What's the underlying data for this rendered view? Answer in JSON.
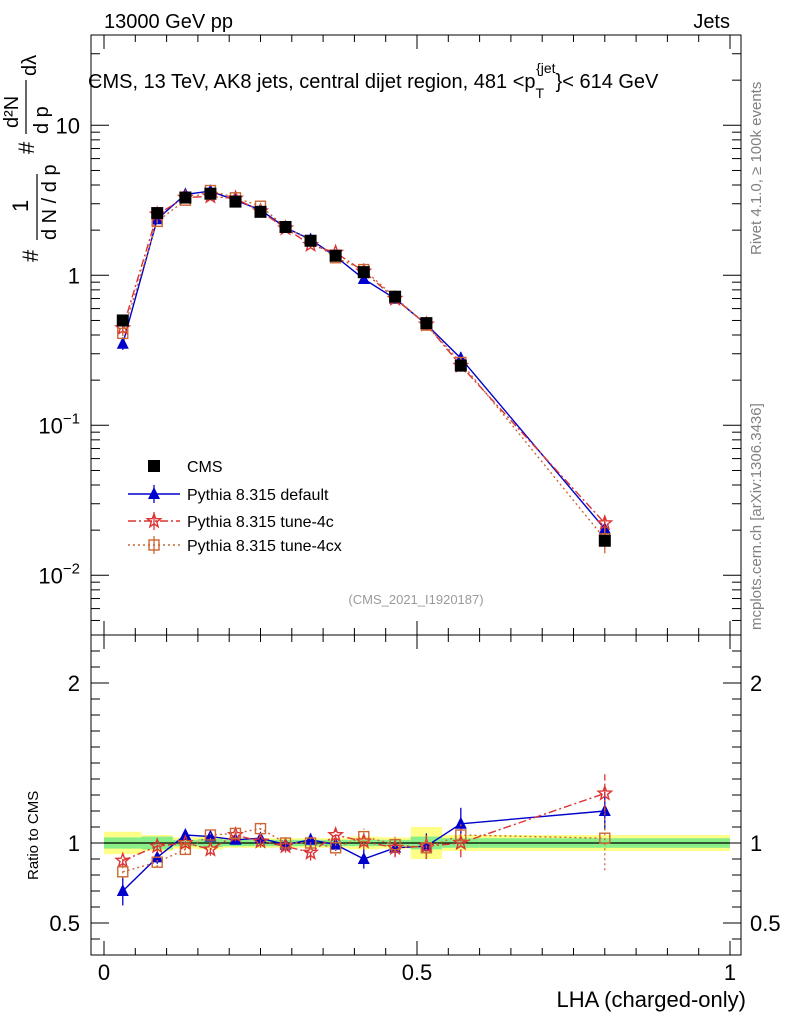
{
  "header": {
    "left": "13000 GeV pp",
    "right": "Jets"
  },
  "chart_data": {
    "type": "scatter",
    "title": "CMS, 13 TeV, AK8 jets, central dijet region, 481 <p_T^{jet}< 614 GeV",
    "title_parts": {
      "pre": "CMS, 13 TeV, AK8 jets, central dijet region, 481 <p",
      "sub": "T",
      "sup": "{jet",
      "post": "}< 614 GeV"
    },
    "xlabel": "LHA (charged-only)",
    "ylabel_parts": {
      "hash": "#",
      "one": "1",
      "denom": "d N / d p",
      "denom_sub": "T",
      "num": "d²N",
      "num_den": "d p",
      "num_den_sub": "T",
      "lambda": "dλ"
    },
    "ratio_ylabel": "Ratio to CMS",
    "analysis_tag": "(CMS_2021_I1920187)",
    "side_right_top": "Rivet 4.1.0, ≥ 100k events",
    "side_right_bottom": "mcplots.cern.ch [arXiv:1306.3436]",
    "xlim": [
      0,
      1
    ],
    "ylim_log": [
      0.004,
      40
    ],
    "ratio_ylim": [
      0.3,
      2.3
    ],
    "x_ticks": [
      "0",
      "0.5",
      "1"
    ],
    "y_ticks": [
      {
        "v": 0.01,
        "base": "10",
        "exp": "−2"
      },
      {
        "v": 0.1,
        "base": "10",
        "exp": "−1"
      },
      {
        "v": 1,
        "base": "1",
        "exp": ""
      },
      {
        "v": 10,
        "base": "10",
        "exp": ""
      }
    ],
    "ratio_ticks": [
      "0.5",
      "1",
      "2"
    ],
    "bin_edges": [
      0,
      0.06,
      0.11,
      0.15,
      0.19,
      0.23,
      0.27,
      0.31,
      0.35,
      0.39,
      0.44,
      0.49,
      0.54,
      0.6,
      1.0
    ],
    "x": [
      0.03,
      0.085,
      0.13,
      0.17,
      0.21,
      0.25,
      0.29,
      0.33,
      0.37,
      0.415,
      0.465,
      0.515,
      0.57,
      0.8
    ],
    "cms_values": [
      0.5,
      2.6,
      3.3,
      3.5,
      3.1,
      2.65,
      2.1,
      1.7,
      1.35,
      1.05,
      0.72,
      0.48,
      0.25,
      0.017
    ],
    "cms_band_inner": [
      0.035,
      0.04,
      0.02,
      0.025,
      0.02,
      0.02,
      0.02,
      0.02,
      0.02,
      0.02,
      0.02,
      0.04,
      0.03,
      0.03
    ],
    "cms_band_outer": [
      0.07,
      0.05,
      0.035,
      0.04,
      0.03,
      0.03,
      0.03,
      0.03,
      0.03,
      0.04,
      0.035,
      0.1,
      0.05,
      0.05
    ],
    "series": [
      {
        "name": "Pythia 8.315 default",
        "color": "#0000cc",
        "marker": "triangle",
        "dash": "",
        "ratio": [
          0.7,
          0.91,
          1.05,
          1.04,
          1.02,
          1.03,
          0.99,
          1.02,
          0.99,
          0.9,
          0.97,
          0.98,
          1.12,
          1.2
        ],
        "ratio_err": [
          0.09,
          0.04,
          0.03,
          0.03,
          0.03,
          0.03,
          0.03,
          0.04,
          0.04,
          0.06,
          0.05,
          0.08,
          0.1,
          0.12
        ]
      },
      {
        "name": "Pythia 8.315 tune-4c",
        "color": "#dd3333",
        "marker": "star",
        "dash": "8,3,2,3",
        "ratio": [
          0.89,
          0.98,
          1.0,
          0.96,
          1.05,
          1.01,
          0.98,
          0.94,
          1.05,
          1.01,
          0.97,
          0.98,
          1.0,
          1.31
        ],
        "ratio_err": [
          0.04,
          0.04,
          0.04,
          0.04,
          0.04,
          0.04,
          0.04,
          0.05,
          0.05,
          0.05,
          0.06,
          0.08,
          0.09,
          0.12
        ]
      },
      {
        "name": "Pythia 8.315 tune-4cx",
        "color": "#cc6633",
        "marker": "open-square",
        "dash": "2,3",
        "ratio": [
          0.82,
          0.88,
          0.96,
          1.05,
          1.06,
          1.09,
          1.0,
          1.0,
          0.97,
          1.04,
          0.99,
          0.97,
          1.05,
          1.03
        ],
        "ratio_err": [
          0.04,
          0.03,
          0.03,
          0.03,
          0.03,
          0.04,
          0.04,
          0.04,
          0.05,
          0.05,
          0.05,
          0.06,
          0.07,
          0.2
        ]
      }
    ],
    "legend": [
      {
        "name": "CMS",
        "marker": "filled-square",
        "color": "#000000"
      },
      {
        "name": "Pythia 8.315 default",
        "marker": "triangle",
        "color": "#0000cc"
      },
      {
        "name": "Pythia 8.315 tune-4c",
        "marker": "star",
        "color": "#dd3333"
      },
      {
        "name": "Pythia 8.315 tune-4cx",
        "marker": "open-square",
        "color": "#cc6633"
      }
    ],
    "legend_position": "bottom-left",
    "colors": {
      "band_inner": "#88ee88",
      "band_outer": "#ffff88",
      "data": "#000000"
    }
  }
}
